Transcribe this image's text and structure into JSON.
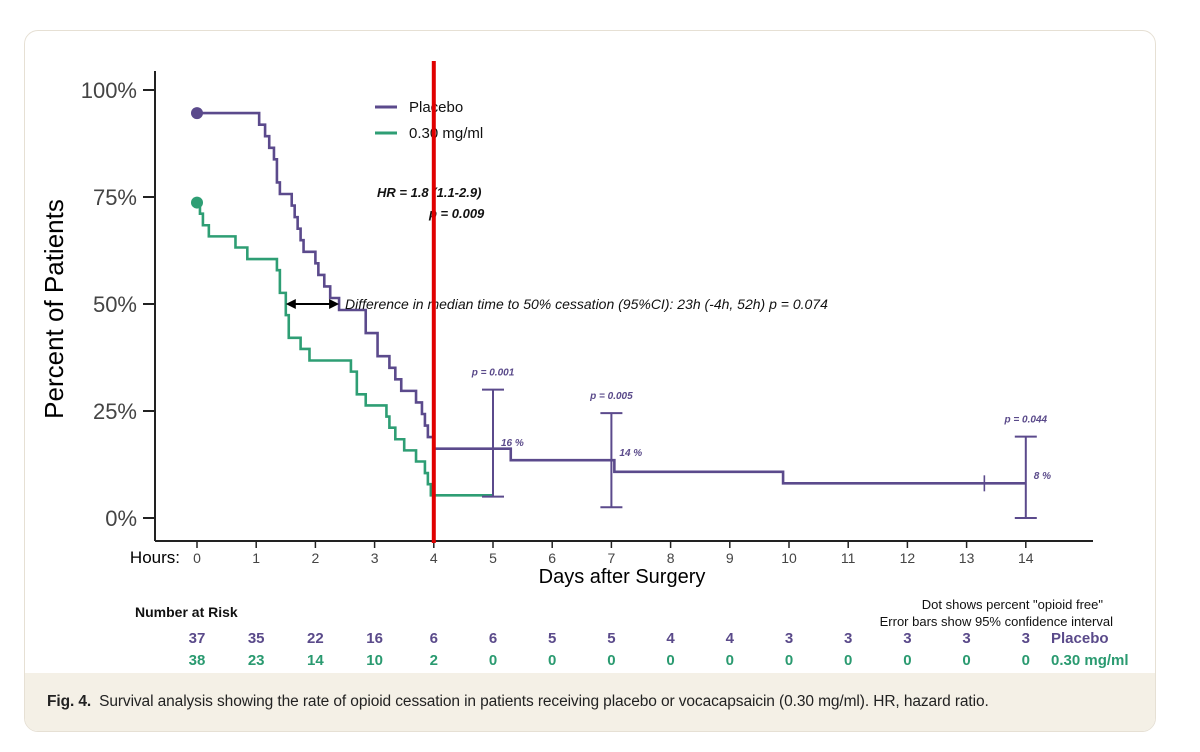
{
  "chart_data": {
    "type": "line",
    "subtype": "kaplan-meier step",
    "xlabel": "Days after Surgery",
    "x_prefix_label": "Hours:",
    "ylabel": "Percent of Patients",
    "xlim": [
      0,
      15
    ],
    "ylim": [
      0,
      100
    ],
    "x_ticks": [
      "0",
      "1",
      "2",
      "3",
      "4",
      "5",
      "6",
      "7",
      "8",
      "9",
      "10",
      "11",
      "12",
      "13",
      "14"
    ],
    "y_ticks": [
      {
        "value": 0,
        "label": "0%"
      },
      {
        "value": 25,
        "label": "25%"
      },
      {
        "value": 50,
        "label": "50%"
      },
      {
        "value": 75,
        "label": "75%"
      },
      {
        "value": 100,
        "label": "100%"
      }
    ],
    "grid": false,
    "legend_position": "top-center",
    "series": [
      {
        "name": "Placebo",
        "color": "#5b4a8c",
        "start_dot": [
          0,
          94.6
        ],
        "steps": [
          [
            0,
            94.6
          ],
          [
            1,
            94.6
          ],
          [
            1.05,
            91.9
          ],
          [
            1.15,
            89.2
          ],
          [
            1.22,
            86.5
          ],
          [
            1.3,
            83.8
          ],
          [
            1.35,
            78.4
          ],
          [
            1.4,
            75.7
          ],
          [
            1.6,
            73.0
          ],
          [
            1.65,
            70.3
          ],
          [
            1.7,
            67.6
          ],
          [
            1.75,
            64.9
          ],
          [
            1.8,
            62.2
          ],
          [
            2.0,
            59.5
          ],
          [
            2.05,
            56.8
          ],
          [
            2.15,
            54.1
          ],
          [
            2.25,
            51.4
          ],
          [
            2.4,
            48.6
          ],
          [
            2.8,
            48.6
          ],
          [
            2.85,
            43.2
          ],
          [
            3.05,
            37.8
          ],
          [
            3.25,
            35.1
          ],
          [
            3.35,
            32.4
          ],
          [
            3.45,
            29.7
          ],
          [
            3.7,
            27.0
          ],
          [
            3.8,
            24.3
          ],
          [
            3.85,
            21.6
          ],
          [
            3.9,
            18.9
          ],
          [
            4.0,
            16.2
          ],
          [
            5.3,
            13.5
          ],
          [
            7.05,
            10.8
          ],
          [
            9.9,
            8.1
          ],
          [
            14,
            8.1
          ]
        ],
        "censor_marks": [
          13.3
        ]
      },
      {
        "name": "0.30 mg/ml",
        "color": "#2e9e74",
        "start_dot": [
          0,
          73.7
        ],
        "steps": [
          [
            0,
            73.7
          ],
          [
            0.05,
            71.1
          ],
          [
            0.1,
            68.4
          ],
          [
            0.2,
            65.8
          ],
          [
            0.65,
            63.2
          ],
          [
            0.85,
            60.5
          ],
          [
            1.35,
            57.9
          ],
          [
            1.4,
            52.6
          ],
          [
            1.5,
            47.4
          ],
          [
            1.55,
            42.1
          ],
          [
            1.75,
            39.5
          ],
          [
            1.9,
            36.8
          ],
          [
            2.6,
            34.2
          ],
          [
            2.7,
            28.9
          ],
          [
            2.85,
            26.3
          ],
          [
            3.2,
            23.7
          ],
          [
            3.25,
            21.1
          ],
          [
            3.35,
            18.4
          ],
          [
            3.5,
            15.8
          ],
          [
            3.7,
            13.2
          ],
          [
            3.85,
            10.5
          ],
          [
            3.9,
            7.9
          ],
          [
            3.95,
            5.3
          ],
          [
            5.0,
            5.3
          ]
        ]
      }
    ],
    "error_bars": [
      {
        "x": 5,
        "low": 5,
        "high": 30,
        "p_label": "p = 0.001",
        "pct_label": "16 %"
      },
      {
        "x": 7,
        "low": 2.5,
        "high": 24.5,
        "p_label": "p = 0.005",
        "pct_label": "14 %"
      },
      {
        "x": 14,
        "low": 0,
        "high": 19,
        "p_label": "p = 0.044",
        "pct_label": "8 %"
      }
    ],
    "annotations": {
      "hr_line1": "HR = 1.8 (1.1-2.9)",
      "hr_line2": "p = 0.009",
      "median_diff": "Difference in median time to 50% cessation (95%CI): 23h (-4h, 52h) p = 0.074",
      "median_arrow": {
        "x_from": 1.5,
        "x_to": 2.4,
        "y": 50
      }
    },
    "reference_line": {
      "x": 4,
      "color": "#e00000"
    },
    "notes": [
      "Dot shows percent \"opioid free\"",
      "Error bars show 95% confidence interval"
    ]
  },
  "risk_table": {
    "title": "Number at Risk",
    "rows": [
      {
        "label": "Placebo",
        "values": [
          "37",
          "35",
          "22",
          "16",
          "6",
          "6",
          "5",
          "5",
          "4",
          "4",
          "3",
          "3",
          "3",
          "3",
          "3"
        ]
      },
      {
        "label": "0.30 mg/ml",
        "values": [
          "38",
          "23",
          "14",
          "10",
          "2",
          "0",
          "0",
          "0",
          "0",
          "0",
          "0",
          "0",
          "0",
          "0",
          "0"
        ]
      }
    ]
  },
  "caption": {
    "fig": "Fig. 4.",
    "text": "Survival analysis showing the rate of opioid cessation in patients receiving placebo or vocacapsaicin (0.30 mg/ml). HR, hazard ratio."
  },
  "colors": {
    "placebo": "#5b4a8c",
    "treatment": "#2e9e74",
    "reference": "#e00000",
    "caption_bg": "#f4f0e6"
  }
}
